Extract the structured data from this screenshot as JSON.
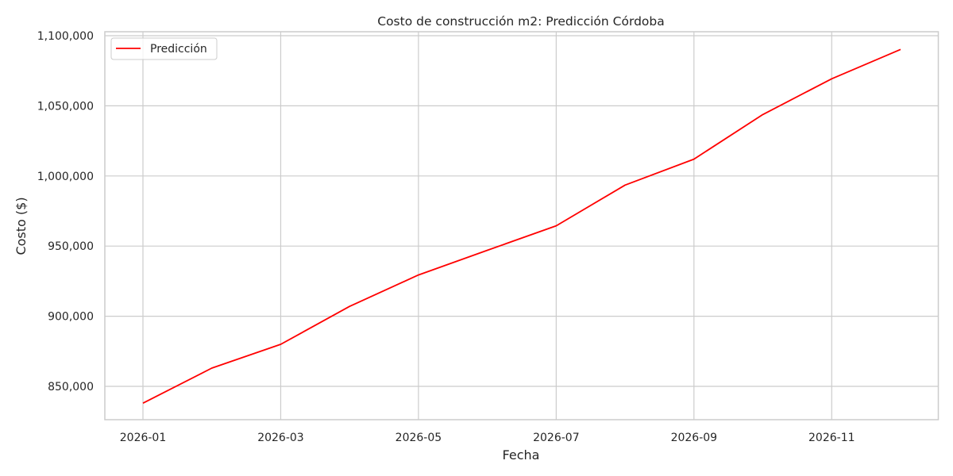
{
  "chart_data": {
    "type": "line",
    "title": "Costo de construcción m2: Predicción Córdoba",
    "xlabel": "Fecha",
    "ylabel": "Costo ($)",
    "x": [
      "2026-01",
      "2026-02",
      "2026-03",
      "2026-04",
      "2026-05",
      "2026-06",
      "2026-07",
      "2026-08",
      "2026-09",
      "2026-10",
      "2026-11",
      "2026-12"
    ],
    "series": [
      {
        "name": "Predicción",
        "color": "#ff0000",
        "values": [
          838000,
          863000,
          880000,
          907000,
          929400,
          947000,
          964500,
          993500,
          1012000,
          1043800,
          1069300,
          1090200
        ]
      }
    ],
    "xticks": [
      "2026-01",
      "2026-03",
      "2026-05",
      "2026-07",
      "2026-09",
      "2026-11"
    ],
    "yticks": [
      850000,
      900000,
      950000,
      1000000,
      1050000,
      1100000
    ],
    "ytick_labels": [
      "850,000",
      "900,000",
      "950,000",
      "1,000,000",
      "1,050,000",
      "1,100,000"
    ],
    "ylim": [
      826000,
      1102500
    ],
    "grid": true,
    "legend_position": "upper left"
  },
  "legend": {
    "label": "Predicción"
  },
  "colors": {
    "line": "#ff0000",
    "grid": "#cccccc",
    "frame": "#cccccc",
    "text": "#262626"
  }
}
